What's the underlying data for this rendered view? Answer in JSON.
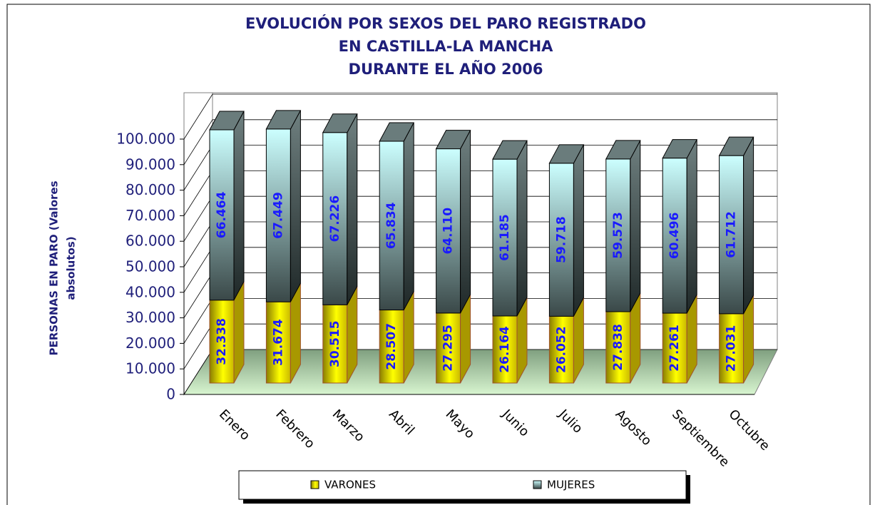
{
  "chart_data": {
    "type": "bar3d_stacked",
    "title": [
      "EVOLUCIÓN POR SEXOS DEL PARO REGISTRADO",
      "EN CASTILLA-LA MANCHA",
      "DURANTE EL AÑO 2006"
    ],
    "y_label": [
      "PERSONAS EN PARO (Valores",
      "absolutos)"
    ],
    "categories": [
      "Enero",
      "Febrero",
      "Marzo",
      "Abril",
      "Mayo",
      "Junio",
      "Julio",
      "Agosto",
      "Septiembre",
      "Octubre"
    ],
    "series": [
      {
        "name": "VARONES",
        "color": "#ffff00",
        "values": [
          32338,
          31674,
          30515,
          28507,
          27295,
          26164,
          26052,
          27838,
          27261,
          27031
        ],
        "value_labels": [
          "32.338",
          "31.674",
          "30.515",
          "28.507",
          "27.295",
          "26.164",
          "26.052",
          "27.838",
          "27.261",
          "27.031"
        ]
      },
      {
        "name": "MUJERES",
        "color": "#ccffff",
        "values": [
          66464,
          67449,
          67226,
          65834,
          64110,
          61185,
          59718,
          59573,
          60496,
          61712
        ],
        "value_labels": [
          "66.464",
          "67.449",
          "67.226",
          "65.834",
          "64.110",
          "61.185",
          "59.718",
          "59.573",
          "60.496",
          "61.712"
        ]
      }
    ],
    "ylim": [
      0,
      100000
    ],
    "yticks": [
      0,
      {
        "value": 10000,
        "label": "10.000"
      },
      {
        "value": 20000,
        "label": "20.000"
      },
      {
        "value": 30000,
        "label": "30.000"
      },
      {
        "value": 40000,
        "label": "40.000"
      },
      {
        "value": 50000,
        "label": "50.000"
      },
      {
        "value": 60000,
        "label": "60.000"
      },
      {
        "value": 70000,
        "label": "70.000"
      },
      {
        "value": 80000,
        "label": "80.000"
      },
      {
        "value": 90000,
        "label": "90.000"
      },
      {
        "value": 100000,
        "label": "100.000"
      }
    ],
    "grid": true,
    "legend": "bottom"
  }
}
